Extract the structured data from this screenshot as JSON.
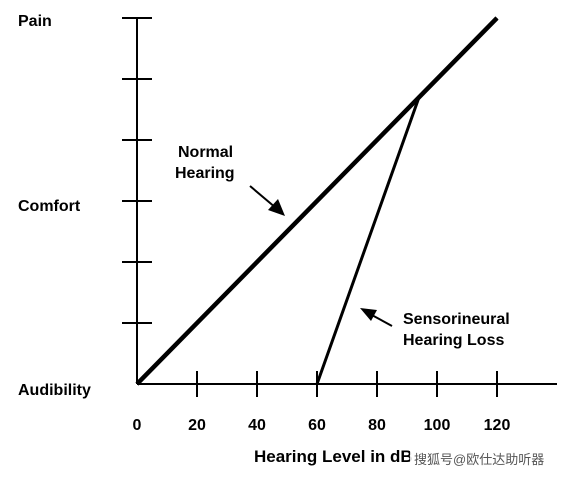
{
  "chart_data": {
    "type": "line",
    "title": "",
    "xlabel": "Hearing Level in dB",
    "ylabel": "",
    "xlim": [
      0,
      140
    ],
    "x_ticks": [
      0,
      20,
      40,
      60,
      80,
      100,
      120
    ],
    "y_levels": [
      "Audibility",
      "Comfort",
      "Pain"
    ],
    "ylim": [
      0,
      6
    ],
    "grid": false,
    "series": [
      {
        "name": "Normal Hearing",
        "x": [
          0,
          120
        ],
        "y": [
          0,
          6
        ]
      },
      {
        "name": "Sensorineural Hearing Loss",
        "x": [
          60,
          94,
          120
        ],
        "y": [
          0,
          4.7,
          6
        ]
      }
    ],
    "annotations": {
      "normal": [
        "Normal",
        "Hearing"
      ],
      "loss": [
        "Sensorineural",
        "Hearing Loss"
      ]
    }
  },
  "watermark": "搜狐号@欧仕达助听器",
  "colors": {
    "ink": "#000000",
    "background": "#ffffff"
  }
}
